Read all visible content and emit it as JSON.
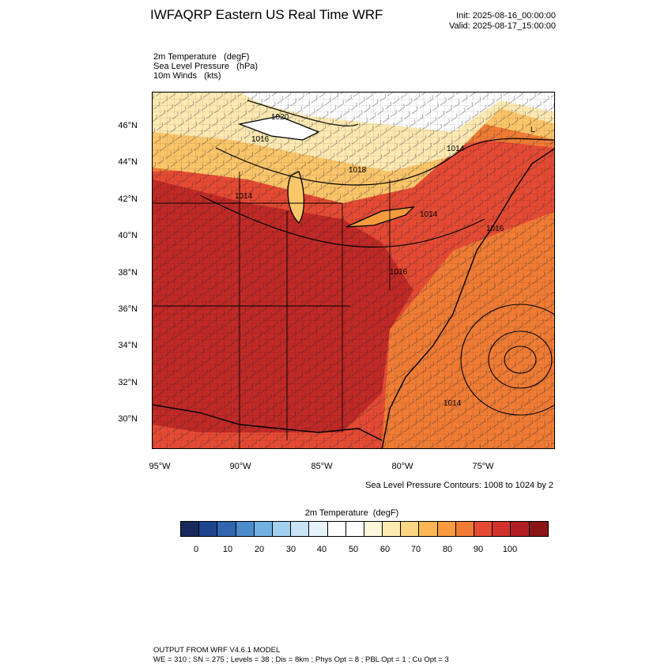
{
  "header": {
    "title": "IWFAQRP Eastern US Real Time WRF",
    "init": "Init: 2025-08-16_00:00:00",
    "valid": "Valid: 2025-08-17_15:00:00"
  },
  "fields": [
    "2m Temperature   (degF)",
    "Sea Level Pressure   (hPa)",
    "10m Winds   (kts)"
  ],
  "map": {
    "lat_labels": [
      "46°N",
      "44°N",
      "42°N",
      "40°N",
      "38°N",
      "36°N",
      "34°N",
      "32°N",
      "30°N"
    ],
    "lon_labels": [
      "95°W",
      "90°W",
      "85°W",
      "80°W",
      "75°W"
    ],
    "pressure_labels": [
      "1020",
      "1016",
      "1018",
      "1014",
      "1014",
      "1014",
      "1016",
      "1016",
      "1014"
    ],
    "low_center_marker": "L",
    "colors": {
      "hot": "#c02a27",
      "warm": "#e54b34",
      "orange": "#f07c35",
      "light": "#fbc56a",
      "pale": "#fde9b2",
      "cool": "#ffffff"
    }
  },
  "contour_note": "Sea Level Pressure Contours: 1008 to 1024 by 2",
  "colorbar": {
    "title": "2m Temperature  (degF)",
    "ticks": [
      "0",
      "10",
      "20",
      "30",
      "40",
      "50",
      "60",
      "70",
      "80",
      "90",
      "100"
    ],
    "colors": [
      "#182a5c",
      "#1f4590",
      "#2f66ad",
      "#4c8ccb",
      "#72b2e2",
      "#a2d0ef",
      "#c8e4f6",
      "#e6f3fb",
      "#ffffff",
      "#ffffff",
      "#fff7dc",
      "#fde9b2",
      "#fdd684",
      "#fbb754",
      "#f79b3d",
      "#f07c35",
      "#e54b34",
      "#d0322b",
      "#b01f24",
      "#8a1516"
    ]
  },
  "footer": {
    "line1": "OUTPUT FROM WRF V4.6.1 MODEL",
    "line2": "WE = 310 ; SN = 275 ; Levels = 38 ; Dis = 8km ; Phys Opt = 8 ; PBL Opt = 1 ; Cu Opt = 3"
  }
}
